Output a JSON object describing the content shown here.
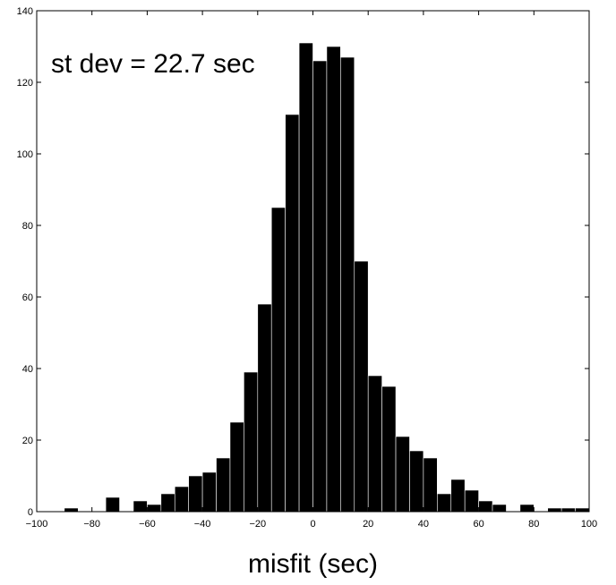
{
  "chart_data": {
    "type": "bar",
    "title": "",
    "annotation": "st dev = 22.7 sec",
    "xlabel": "misfit (sec)",
    "ylabel": "",
    "xlim": [
      -100,
      100
    ],
    "ylim": [
      0,
      140
    ],
    "bin_width": 5,
    "bin_starts": [
      -100,
      -95,
      -90,
      -85,
      -80,
      -75,
      -70,
      -65,
      -60,
      -55,
      -50,
      -45,
      -40,
      -35,
      -30,
      -25,
      -20,
      -15,
      -10,
      -5,
      0,
      5,
      10,
      15,
      20,
      25,
      30,
      35,
      40,
      45,
      50,
      55,
      60,
      65,
      70,
      75,
      80,
      85,
      90,
      95
    ],
    "values": [
      0,
      0,
      1,
      0,
      0,
      4,
      0,
      3,
      2,
      5,
      7,
      10,
      11,
      15,
      25,
      39,
      58,
      85,
      111,
      131,
      126,
      130,
      127,
      70,
      38,
      35,
      21,
      17,
      15,
      5,
      9,
      6,
      3,
      2,
      0,
      2,
      0,
      1,
      1,
      1
    ],
    "x_ticks": [
      "−100",
      "−80",
      "−60",
      "−40",
      "−20",
      "0",
      "20",
      "40",
      "60",
      "80",
      "100"
    ],
    "y_ticks": [
      "0",
      "20",
      "40",
      "60",
      "80",
      "100",
      "120",
      "140"
    ],
    "grid": false,
    "bar_color": "#000000"
  }
}
